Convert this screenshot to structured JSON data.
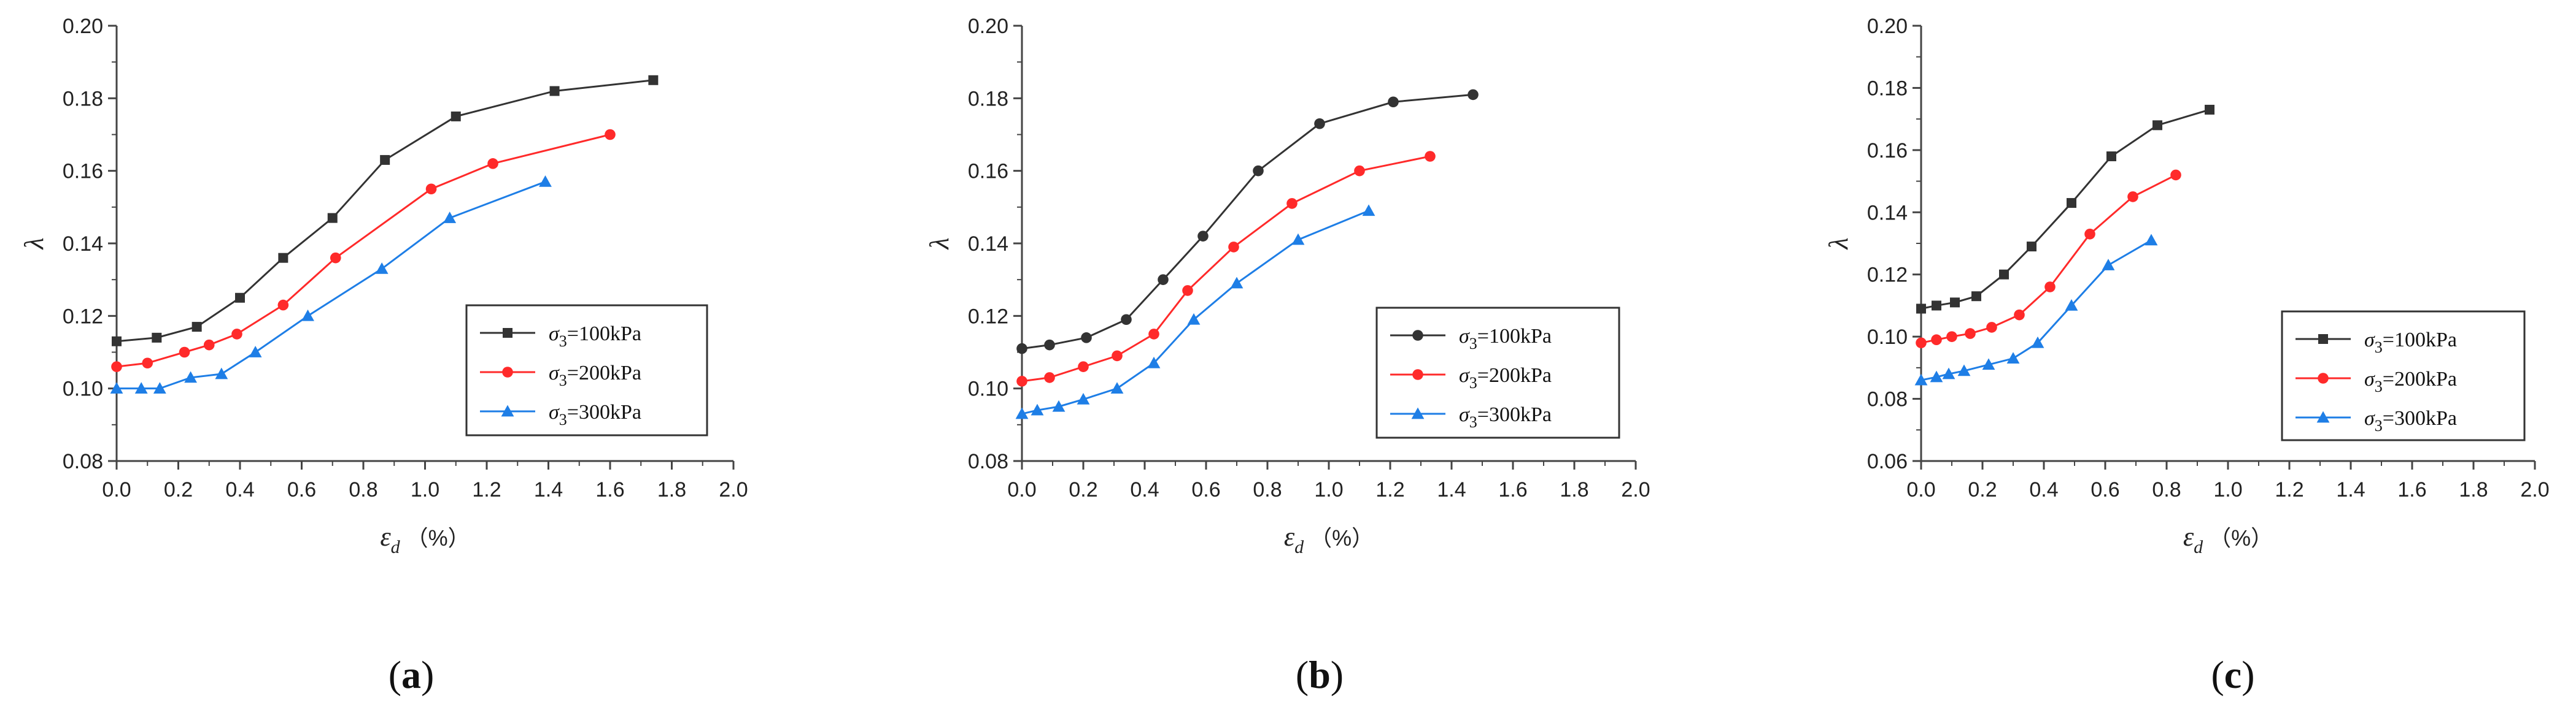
{
  "figure": {
    "panel_labels": [
      "(a)",
      "(b)",
      "(c)"
    ]
  },
  "chart_data": [
    {
      "type": "line",
      "panel": "(a)",
      "xlabel": "εd",
      "xunit": "（%）",
      "ylabel": "λ",
      "xlim": [
        0.0,
        2.0
      ],
      "ylim": [
        0.08,
        0.2
      ],
      "xticks": [
        "0.0",
        "0.2",
        "0.4",
        "0.6",
        "0.8",
        "1.0",
        "1.2",
        "1.4",
        "1.6",
        "1.8",
        "2.0"
      ],
      "yticks": [
        "0.08",
        "0.10",
        "0.12",
        "0.14",
        "0.16",
        "0.18",
        "0.20"
      ],
      "legend": "bottom-right",
      "series": [
        {
          "name": "σ3=100kPa",
          "sub": "3",
          "label_prefix": "σ",
          "label_suffix": "=100kPa",
          "color": "#333333",
          "marker": "square",
          "x": [
            0.0,
            0.13,
            0.26,
            0.4,
            0.54,
            0.7,
            0.87,
            1.1,
            1.42,
            1.74
          ],
          "y": [
            0.113,
            0.114,
            0.117,
            0.125,
            0.136,
            0.147,
            0.163,
            0.175,
            0.182,
            0.185
          ]
        },
        {
          "name": "σ3=200kPa",
          "sub": "3",
          "label_prefix": "σ",
          "label_suffix": "=200kPa",
          "color": "#ff2a2a",
          "marker": "circle",
          "x": [
            0.0,
            0.1,
            0.22,
            0.3,
            0.39,
            0.54,
            0.71,
            1.02,
            1.22,
            1.6
          ],
          "y": [
            0.106,
            0.107,
            0.11,
            0.112,
            0.115,
            0.123,
            0.136,
            0.155,
            0.162,
            0.17
          ]
        },
        {
          "name": "σ3=300kPa",
          "sub": "3",
          "label_prefix": "σ",
          "label_suffix": "=300kPa",
          "color": "#1e7ee6",
          "marker": "triangle",
          "x": [
            0.0,
            0.08,
            0.14,
            0.24,
            0.34,
            0.45,
            0.62,
            0.86,
            1.08,
            1.39
          ],
          "y": [
            0.1,
            0.1,
            0.1,
            0.103,
            0.104,
            0.11,
            0.12,
            0.133,
            0.147,
            0.157
          ]
        }
      ]
    },
    {
      "type": "line",
      "panel": "(b)",
      "xlabel": "εd",
      "xunit": "（%）",
      "ylabel": "λ",
      "xlim": [
        0.0,
        2.0
      ],
      "ylim": [
        0.08,
        0.2
      ],
      "xticks": [
        "0.0",
        "0.2",
        "0.4",
        "0.6",
        "0.8",
        "1.0",
        "1.2",
        "1.4",
        "1.6",
        "1.8",
        "2.0"
      ],
      "yticks": [
        "0.08",
        "0.10",
        "0.12",
        "0.14",
        "0.16",
        "0.18",
        "0.20"
      ],
      "legend": "bottom-right",
      "series": [
        {
          "name": "σ3=100kPa",
          "sub": "3",
          "label_prefix": "σ",
          "label_suffix": "=100kPa",
          "color": "#333333",
          "marker": "circle",
          "x": [
            0.0,
            0.09,
            0.21,
            0.34,
            0.46,
            0.59,
            0.77,
            0.97,
            1.21,
            1.47
          ],
          "y": [
            0.111,
            0.112,
            0.114,
            0.119,
            0.13,
            0.142,
            0.16,
            0.173,
            0.179,
            0.181
          ]
        },
        {
          "name": "σ3=200kPa",
          "sub": "3",
          "label_prefix": "σ",
          "label_suffix": "=200kPa",
          "color": "#ff2a2a",
          "marker": "circle",
          "x": [
            0.0,
            0.09,
            0.2,
            0.31,
            0.43,
            0.54,
            0.69,
            0.88,
            1.1,
            1.33
          ],
          "y": [
            0.102,
            0.103,
            0.106,
            0.109,
            0.115,
            0.127,
            0.139,
            0.151,
            0.16,
            0.164
          ]
        },
        {
          "name": "σ3=300kPa",
          "sub": "3",
          "label_prefix": "σ",
          "label_suffix": "=300kPa",
          "color": "#1e7ee6",
          "marker": "triangle",
          "x": [
            0.0,
            0.05,
            0.12,
            0.2,
            0.31,
            0.43,
            0.56,
            0.7,
            0.9,
            1.13
          ],
          "y": [
            0.093,
            0.094,
            0.095,
            0.097,
            0.1,
            0.107,
            0.119,
            0.129,
            0.141,
            0.149
          ]
        }
      ]
    },
    {
      "type": "line",
      "panel": "(c)",
      "xlabel": "εd",
      "xunit": "（%）",
      "ylabel": "λ",
      "xlim": [
        0.0,
        2.0
      ],
      "ylim": [
        0.06,
        0.2
      ],
      "xticks": [
        "0.0",
        "0.2",
        "0.4",
        "0.6",
        "0.8",
        "1.0",
        "1.2",
        "1.4",
        "1.6",
        "1.8",
        "2.0"
      ],
      "yticks": [
        "0.06",
        "0.08",
        "0.10",
        "0.12",
        "0.14",
        "0.16",
        "0.18",
        "0.20"
      ],
      "legend": "bottom-right",
      "series": [
        {
          "name": "σ3=100kPa",
          "sub": "3",
          "label_prefix": "σ",
          "label_suffix": "=100kPa",
          "color": "#333333",
          "marker": "square",
          "x": [
            0.0,
            0.05,
            0.11,
            0.18,
            0.27,
            0.36,
            0.49,
            0.62,
            0.77,
            0.94
          ],
          "y": [
            0.109,
            0.11,
            0.111,
            0.113,
            0.12,
            0.129,
            0.143,
            0.158,
            0.168,
            0.173
          ]
        },
        {
          "name": "σ3=200kPa",
          "sub": "3",
          "label_prefix": "σ",
          "label_suffix": "=200kPa",
          "color": "#ff2a2a",
          "marker": "circle",
          "x": [
            0.0,
            0.05,
            0.1,
            0.16,
            0.23,
            0.32,
            0.42,
            0.55,
            0.69,
            0.83
          ],
          "y": [
            0.098,
            0.099,
            0.1,
            0.101,
            0.103,
            0.107,
            0.116,
            0.133,
            0.145,
            0.152
          ]
        },
        {
          "name": "σ3=300kPa",
          "sub": "3",
          "label_prefix": "σ",
          "label_suffix": "=300kPa",
          "color": "#1e7ee6",
          "marker": "triangle",
          "x": [
            0.0,
            0.05,
            0.09,
            0.14,
            0.22,
            0.3,
            0.38,
            0.49,
            0.61,
            0.75
          ],
          "y": [
            0.086,
            0.087,
            0.088,
            0.089,
            0.091,
            0.093,
            0.098,
            0.11,
            0.123,
            0.131
          ]
        }
      ]
    }
  ]
}
